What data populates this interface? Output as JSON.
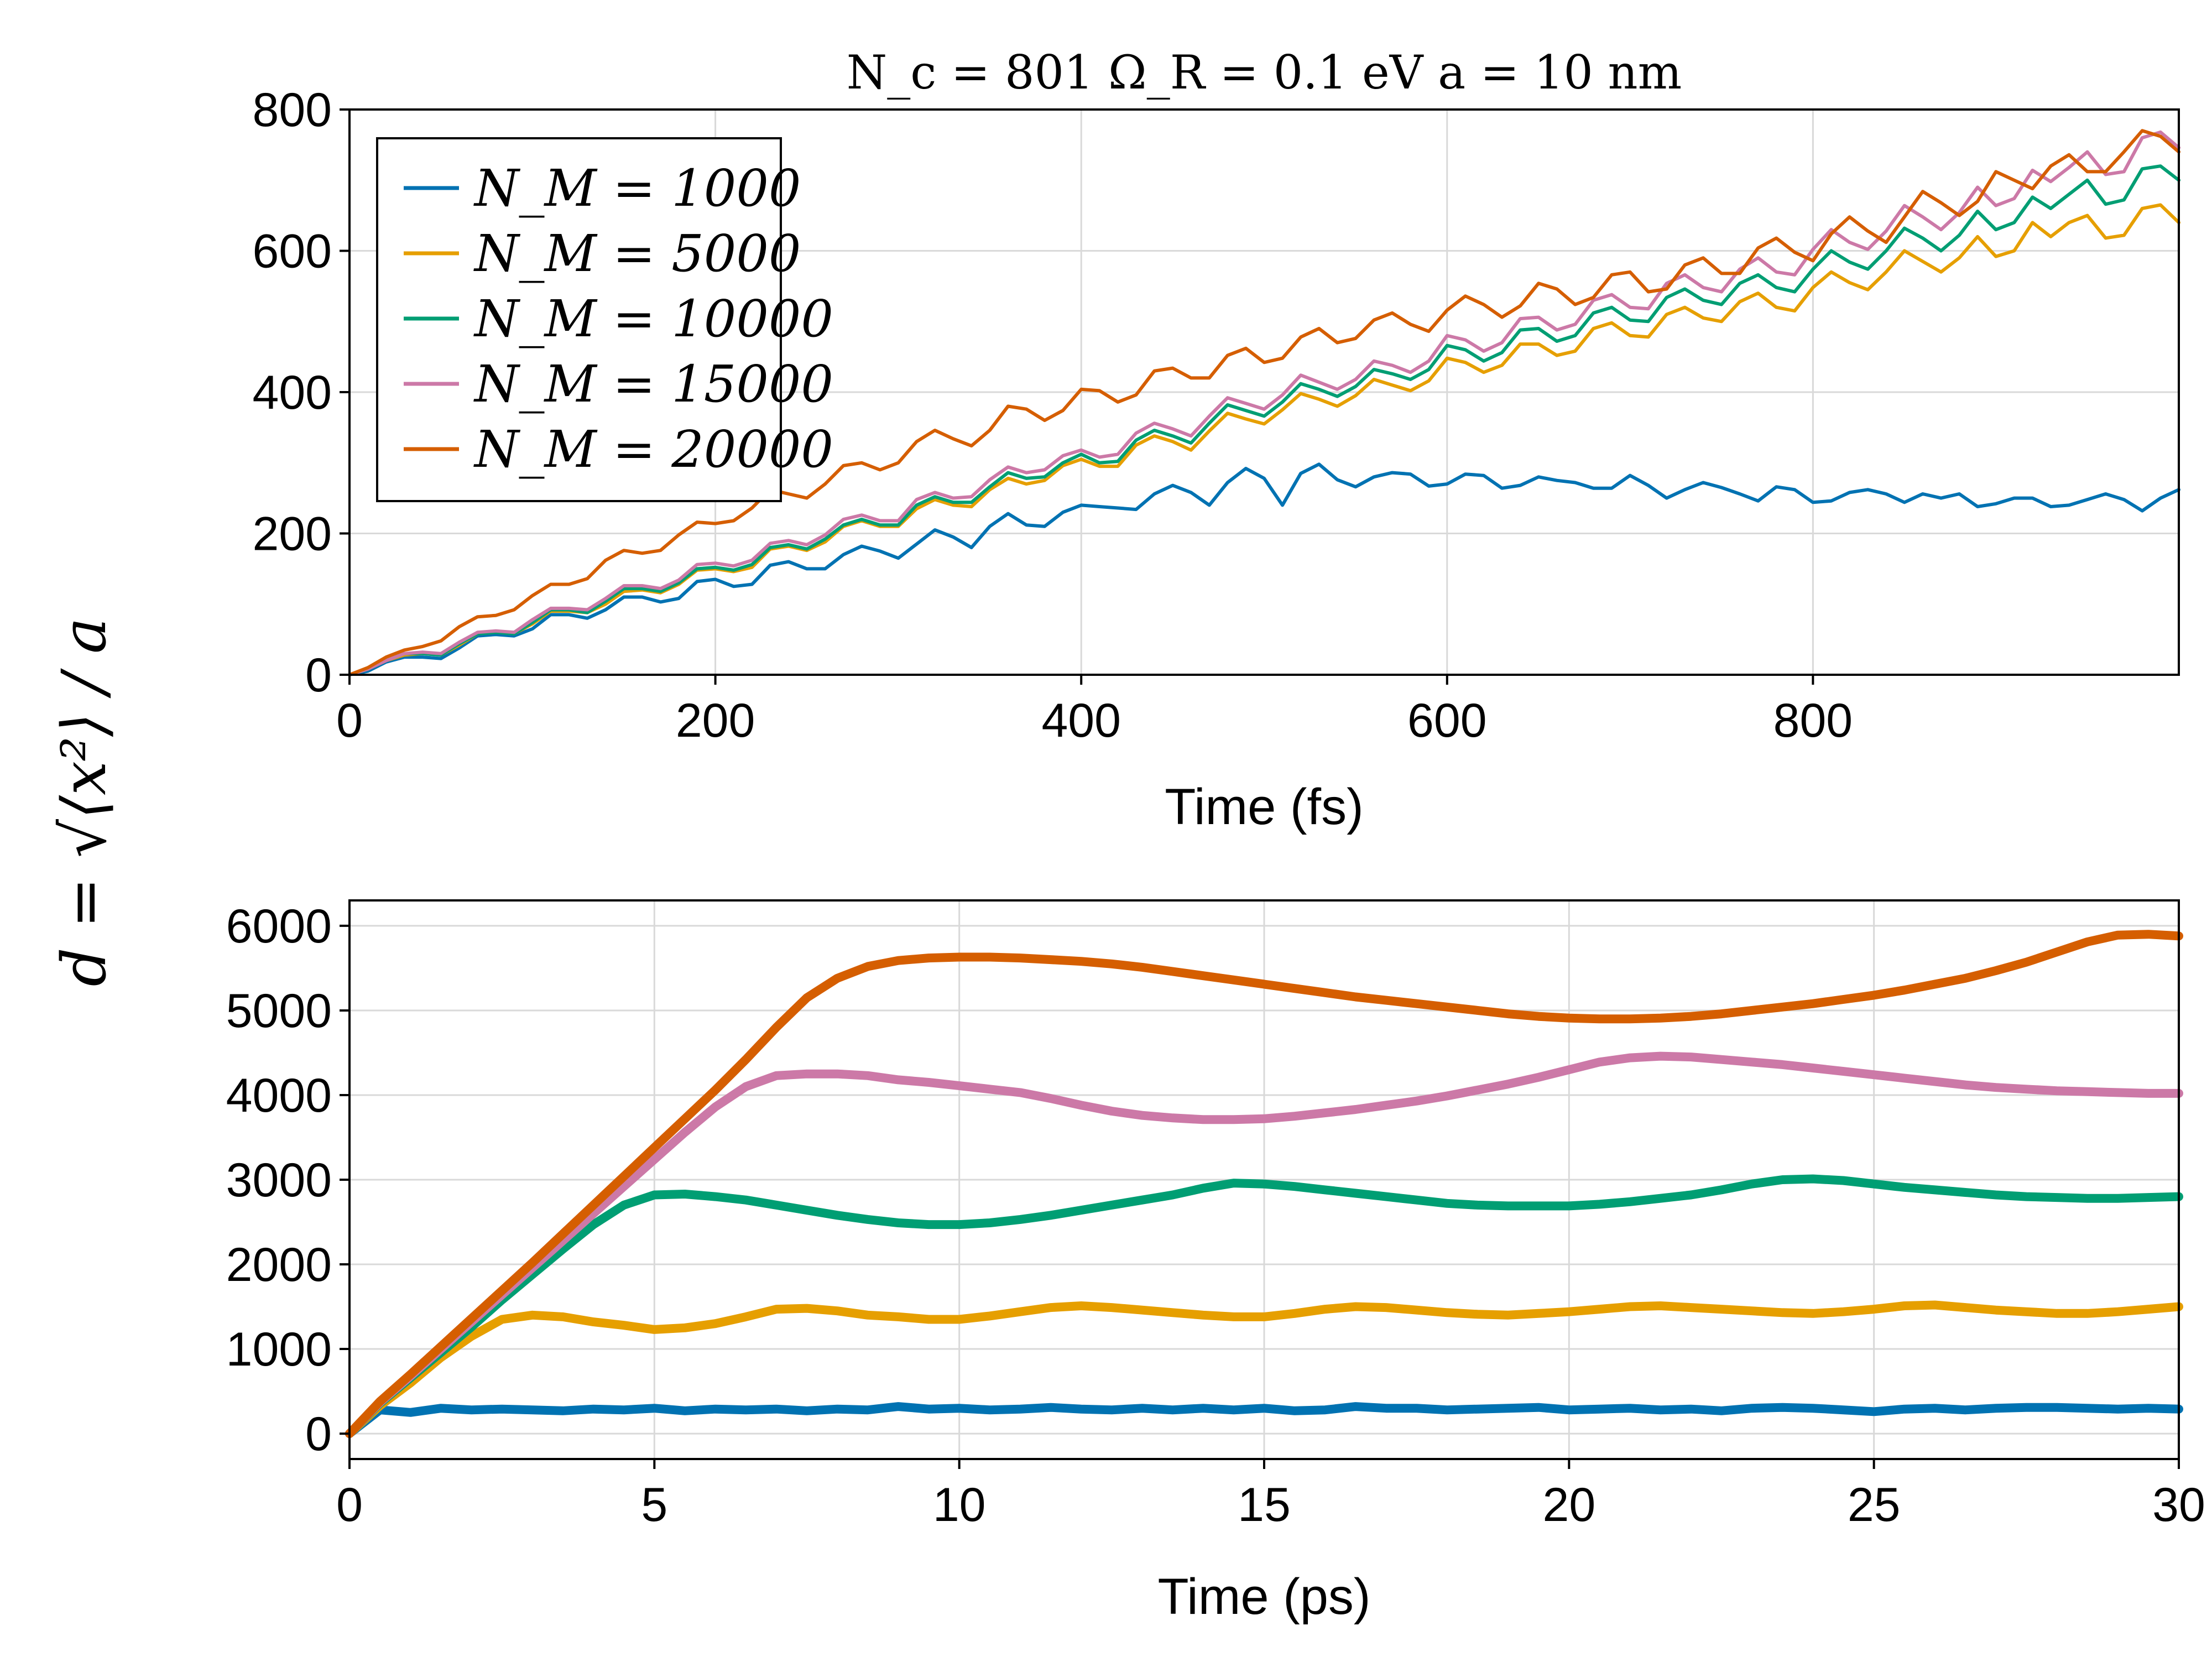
{
  "figure": {
    "ylabel": "d = √⟨x²⟩ / a"
  },
  "chart_data": [
    {
      "type": "line",
      "title": "N_c = 801   Ω_R = 0.1 eV   a = 10 nm",
      "xlabel": "Time (fs)",
      "xlim": [
        0,
        1000
      ],
      "ylim": [
        0,
        800
      ],
      "xticks": [
        "0",
        "200",
        "400",
        "600",
        "800"
      ],
      "yticks": [
        "0",
        "200",
        "400",
        "600",
        "800"
      ],
      "grid": true,
      "legend_position": "top-left",
      "x": [
        0,
        10,
        20,
        30,
        40,
        50,
        60,
        70,
        80,
        90,
        100,
        110,
        120,
        130,
        140,
        150,
        160,
        170,
        180,
        190,
        200,
        210,
        220,
        230,
        240,
        250,
        260,
        270,
        280,
        290,
        300,
        310,
        320,
        330,
        340,
        350,
        360,
        370,
        380,
        390,
        400,
        410,
        420,
        430,
        440,
        450,
        460,
        470,
        480,
        490,
        500,
        510,
        520,
        530,
        540,
        550,
        560,
        570,
        580,
        590,
        600,
        610,
        620,
        630,
        640,
        650,
        660,
        670,
        680,
        690,
        700,
        710,
        720,
        730,
        740,
        750,
        760,
        770,
        780,
        790,
        800,
        810,
        820,
        830,
        840,
        850,
        860,
        870,
        880,
        890,
        900,
        910,
        920,
        930,
        940,
        950,
        960,
        970,
        980,
        990,
        1000
      ],
      "series": [
        {
          "name": "N_M = 1000",
          "color": "#0072B2",
          "values": [
            0,
            5,
            18,
            25,
            25,
            23,
            38,
            55,
            57,
            55,
            65,
            85,
            85,
            80,
            92,
            110,
            110,
            103,
            108,
            132,
            135,
            125,
            128,
            155,
            160,
            150,
            150,
            170,
            182,
            175,
            165,
            185,
            205,
            195,
            180,
            210,
            228,
            212,
            210,
            230,
            240,
            238,
            236,
            234,
            256,
            268,
            258,
            240,
            272,
            292,
            278,
            240,
            285,
            298,
            276,
            266,
            280,
            286,
            284,
            267,
            270,
            284,
            282,
            264,
            268,
            280,
            275,
            272,
            264,
            264,
            282,
            268,
            250,
            262,
            272,
            265,
            256,
            246,
            266,
            262,
            244,
            246,
            258,
            262,
            256,
            244,
            256,
            250,
            256,
            238,
            242,
            250,
            250,
            238,
            240,
            248,
            256,
            248,
            232,
            250,
            262
          ]
        },
        {
          "name": "N_M = 5000",
          "color": "#E69F00",
          "values": [
            0,
            8,
            20,
            28,
            30,
            28,
            42,
            58,
            60,
            58,
            72,
            90,
            90,
            88,
            100,
            118,
            120,
            116,
            128,
            148,
            150,
            146,
            152,
            178,
            182,
            176,
            188,
            210,
            218,
            210,
            210,
            235,
            248,
            240,
            238,
            262,
            278,
            270,
            275,
            296,
            305,
            295,
            295,
            325,
            338,
            330,
            318,
            345,
            370,
            362,
            355,
            375,
            398,
            390,
            380,
            395,
            418,
            410,
            402,
            416,
            448,
            442,
            428,
            438,
            468,
            468,
            452,
            458,
            490,
            498,
            480,
            478,
            510,
            520,
            505,
            500,
            528,
            540,
            520,
            515,
            548,
            570,
            555,
            545,
            570,
            600,
            585,
            570,
            590,
            620,
            592,
            600,
            640,
            620,
            640,
            650,
            618,
            622,
            660,
            665,
            640
          ]
        },
        {
          "name": "N_M = 10000",
          "color": "#009E73",
          "values": [
            0,
            8,
            20,
            30,
            30,
            28,
            44,
            58,
            60,
            58,
            74,
            92,
            92,
            88,
            104,
            122,
            122,
            118,
            130,
            150,
            152,
            148,
            156,
            180,
            184,
            178,
            192,
            212,
            220,
            212,
            212,
            240,
            252,
            244,
            244,
            266,
            286,
            278,
            280,
            300,
            312,
            300,
            302,
            332,
            346,
            338,
            328,
            356,
            382,
            374,
            366,
            386,
            412,
            404,
            394,
            408,
            432,
            426,
            418,
            432,
            466,
            460,
            444,
            456,
            488,
            490,
            472,
            480,
            512,
            520,
            502,
            500,
            534,
            546,
            530,
            524,
            554,
            566,
            548,
            542,
            574,
            600,
            584,
            574,
            600,
            632,
            618,
            600,
            622,
            656,
            630,
            640,
            676,
            660,
            680,
            700,
            666,
            672,
            716,
            720,
            700
          ]
        },
        {
          "name": "N_M = 15000",
          "color": "#CC79A7",
          "values": [
            0,
            8,
            20,
            30,
            32,
            30,
            46,
            60,
            62,
            60,
            78,
            94,
            94,
            92,
            108,
            126,
            126,
            122,
            134,
            156,
            158,
            154,
            162,
            186,
            190,
            184,
            198,
            220,
            226,
            218,
            218,
            248,
            258,
            250,
            252,
            276,
            294,
            286,
            290,
            310,
            318,
            308,
            312,
            342,
            356,
            348,
            338,
            366,
            392,
            384,
            376,
            396,
            424,
            414,
            404,
            418,
            444,
            438,
            428,
            444,
            480,
            474,
            458,
            470,
            504,
            506,
            488,
            496,
            530,
            538,
            520,
            518,
            554,
            566,
            548,
            542,
            574,
            590,
            570,
            566,
            602,
            630,
            612,
            602,
            628,
            664,
            648,
            630,
            654,
            690,
            664,
            674,
            714,
            698,
            718,
            740,
            708,
            712,
            760,
            768,
            746
          ]
        },
        {
          "name": "N_M = 20000",
          "color": "#D55E00",
          "values": [
            0,
            10,
            25,
            35,
            40,
            48,
            68,
            82,
            84,
            92,
            112,
            128,
            128,
            136,
            162,
            176,
            172,
            176,
            198,
            216,
            214,
            218,
            236,
            262,
            256,
            250,
            270,
            296,
            300,
            290,
            300,
            330,
            346,
            334,
            324,
            346,
            380,
            376,
            360,
            374,
            404,
            402,
            386,
            396,
            430,
            434,
            420,
            420,
            452,
            462,
            442,
            448,
            478,
            490,
            470,
            476,
            502,
            512,
            496,
            486,
            516,
            536,
            524,
            506,
            522,
            554,
            546,
            524,
            534,
            566,
            570,
            542,
            546,
            580,
            590,
            568,
            568,
            604,
            618,
            598,
            586,
            624,
            648,
            628,
            612,
            648,
            684,
            668,
            650,
            670,
            712,
            700,
            688,
            720,
            736,
            712,
            712,
            740,
            770,
            762,
            740
          ]
        }
      ]
    },
    {
      "type": "line",
      "xlabel": "Time (ps)",
      "xlim": [
        0,
        30
      ],
      "ylim": [
        -300,
        6300
      ],
      "xticks": [
        "0",
        "5",
        "10",
        "15",
        "20",
        "25",
        "30"
      ],
      "yticks": [
        "0",
        "1000",
        "2000",
        "3000",
        "4000",
        "5000",
        "6000"
      ],
      "grid": true,
      "x": [
        0,
        0.5,
        1,
        1.5,
        2,
        2.5,
        3,
        3.5,
        4,
        4.5,
        5,
        5.5,
        6,
        6.5,
        7,
        7.5,
        8,
        8.5,
        9,
        9.5,
        10,
        10.5,
        11,
        11.5,
        12,
        12.5,
        13,
        13.5,
        14,
        14.5,
        15,
        15.5,
        16,
        16.5,
        17,
        17.5,
        18,
        18.5,
        19,
        19.5,
        20,
        20.5,
        21,
        21.5,
        22,
        22.5,
        23,
        23.5,
        24,
        24.5,
        25,
        25.5,
        26,
        26.5,
        27,
        27.5,
        28,
        28.5,
        29,
        29.5,
        30
      ],
      "series": [
        {
          "name": "N_M = 1000",
          "color": "#0072B2",
          "values": [
            0,
            280,
            250,
            300,
            280,
            290,
            280,
            270,
            290,
            280,
            300,
            270,
            290,
            280,
            290,
            270,
            290,
            280,
            320,
            290,
            300,
            280,
            290,
            310,
            290,
            280,
            300,
            280,
            300,
            280,
            300,
            270,
            280,
            320,
            300,
            300,
            280,
            290,
            300,
            310,
            280,
            290,
            300,
            280,
            290,
            270,
            300,
            310,
            300,
            280,
            260,
            290,
            300,
            280,
            300,
            310,
            310,
            300,
            290,
            300,
            290
          ]
        },
        {
          "name": "N_M = 5000",
          "color": "#E69F00",
          "values": [
            0,
            330,
            600,
            900,
            1150,
            1350,
            1400,
            1380,
            1320,
            1280,
            1230,
            1250,
            1300,
            1380,
            1470,
            1480,
            1450,
            1400,
            1380,
            1350,
            1350,
            1390,
            1440,
            1490,
            1510,
            1490,
            1460,
            1430,
            1400,
            1380,
            1380,
            1420,
            1470,
            1500,
            1490,
            1460,
            1430,
            1410,
            1400,
            1420,
            1440,
            1470,
            1500,
            1510,
            1490,
            1470,
            1450,
            1430,
            1420,
            1440,
            1470,
            1510,
            1520,
            1490,
            1460,
            1440,
            1420,
            1420,
            1440,
            1470,
            1500
          ]
        },
        {
          "name": "N_M = 10000",
          "color": "#009E73",
          "values": [
            0,
            360,
            660,
            960,
            1260,
            1580,
            1880,
            2180,
            2470,
            2700,
            2820,
            2830,
            2800,
            2760,
            2700,
            2640,
            2580,
            2530,
            2490,
            2470,
            2470,
            2490,
            2530,
            2580,
            2640,
            2700,
            2760,
            2820,
            2900,
            2960,
            2950,
            2920,
            2880,
            2840,
            2800,
            2760,
            2720,
            2700,
            2690,
            2690,
            2690,
            2710,
            2740,
            2780,
            2820,
            2880,
            2950,
            3000,
            3010,
            2990,
            2950,
            2910,
            2880,
            2850,
            2820,
            2800,
            2790,
            2780,
            2780,
            2790,
            2800
          ]
        },
        {
          "name": "N_M = 15000",
          "color": "#CC79A7",
          "values": [
            0,
            370,
            680,
            1000,
            1320,
            1640,
            1960,
            2280,
            2600,
            2920,
            3240,
            3560,
            3860,
            4100,
            4230,
            4250,
            4250,
            4230,
            4180,
            4150,
            4110,
            4070,
            4030,
            3960,
            3880,
            3810,
            3760,
            3730,
            3710,
            3710,
            3720,
            3750,
            3790,
            3830,
            3880,
            3930,
            3990,
            4060,
            4130,
            4210,
            4300,
            4390,
            4440,
            4460,
            4450,
            4420,
            4390,
            4360,
            4320,
            4280,
            4240,
            4200,
            4160,
            4120,
            4090,
            4070,
            4050,
            4040,
            4030,
            4020,
            4020
          ]
        },
        {
          "name": "N_M = 20000",
          "color": "#D55E00",
          "values": [
            0,
            380,
            700,
            1030,
            1360,
            1690,
            2020,
            2360,
            2700,
            3040,
            3380,
            3720,
            4060,
            4420,
            4800,
            5150,
            5380,
            5520,
            5590,
            5620,
            5630,
            5630,
            5620,
            5600,
            5580,
            5550,
            5510,
            5460,
            5410,
            5360,
            5310,
            5260,
            5210,
            5160,
            5120,
            5080,
            5040,
            5000,
            4960,
            4930,
            4910,
            4900,
            4900,
            4910,
            4930,
            4960,
            5000,
            5040,
            5080,
            5130,
            5180,
            5240,
            5310,
            5380,
            5470,
            5570,
            5690,
            5810,
            5890,
            5900,
            5880
          ]
        }
      ]
    }
  ]
}
